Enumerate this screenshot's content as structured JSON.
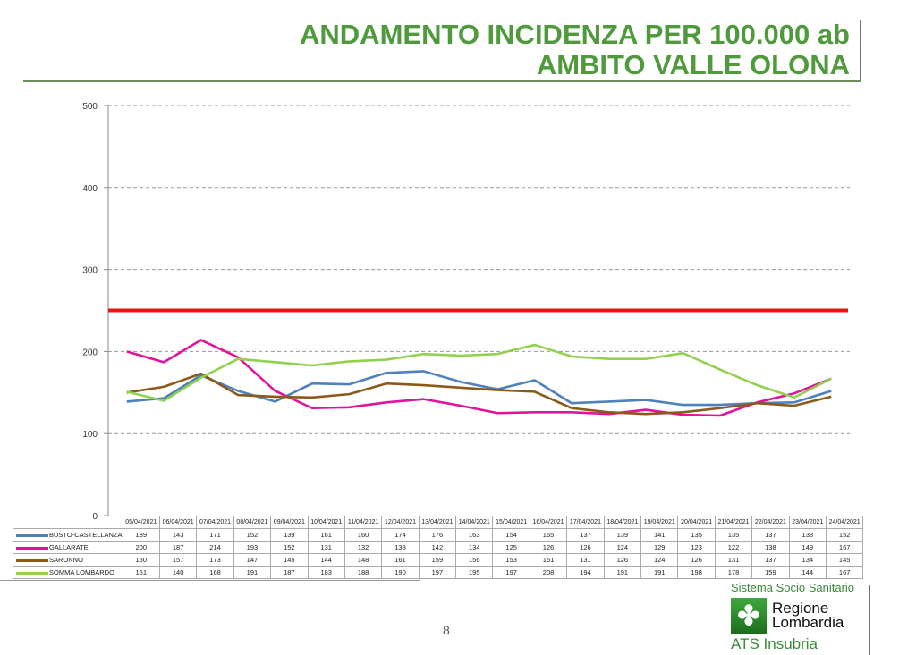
{
  "title": {
    "line1": "ANDAMENTO INCIDENZA PER 100.000 ab",
    "line2": "AMBITO VALLE OLONA"
  },
  "page_number": "8",
  "logo": {
    "top": "Sistema Socio Sanitario",
    "name1": "Regione",
    "name2": "Lombardia",
    "sub": "ATS Insubria"
  },
  "chart_data": {
    "type": "line",
    "title": "ANDAMENTO INCIDENZA PER 100.000 ab AMBITO VALLE OLONA",
    "ylim": [
      0,
      500
    ],
    "yticks": [
      0,
      100,
      200,
      300,
      400,
      500
    ],
    "grid": true,
    "threshold": {
      "value": 250,
      "color": "#e8140e"
    },
    "categories": [
      "05/04/2021",
      "06/04/2021",
      "07/04/2021",
      "08/04/2021",
      "09/04/2021",
      "10/04/2021",
      "11/04/2021",
      "12/04/2021",
      "13/04/2021",
      "14/04/2021",
      "15/04/2021",
      "16/04/2021",
      "17/04/2021",
      "18/04/2021",
      "19/04/2021",
      "20/04/2021",
      "21/04/2021",
      "22/04/2021",
      "23/04/2021",
      "24/04/2021"
    ],
    "series": [
      {
        "name": "BUSTO-CASTELLANZA",
        "color": "#4f81bd",
        "values": [
          139,
          143,
          171,
          152,
          139,
          161,
          160,
          174,
          176,
          163,
          154,
          165,
          137,
          139,
          141,
          135,
          135,
          137,
          138,
          152
        ]
      },
      {
        "name": "GALLARATE",
        "color": "#e0149a",
        "values": [
          200,
          187,
          214,
          193,
          152,
          131,
          132,
          138,
          142,
          134,
          125,
          126,
          126,
          124,
          129,
          123,
          122,
          138,
          149,
          167
        ]
      },
      {
        "name": "SARONNO",
        "color": "#8b5a1a",
        "values": [
          150,
          157,
          173,
          147,
          145,
          144,
          148,
          161,
          159,
          156,
          153,
          151,
          131,
          126,
          124,
          126,
          131,
          137,
          134,
          145
        ]
      },
      {
        "name": "SOMMA LOMBARDO",
        "color": "#92d050",
        "values": [
          151,
          140,
          168,
          191,
          187,
          183,
          188,
          190,
          197,
          195,
          197,
          208,
          194,
          191,
          191,
          198,
          178,
          159,
          144,
          167
        ]
      }
    ],
    "legend": "table-bottom"
  }
}
